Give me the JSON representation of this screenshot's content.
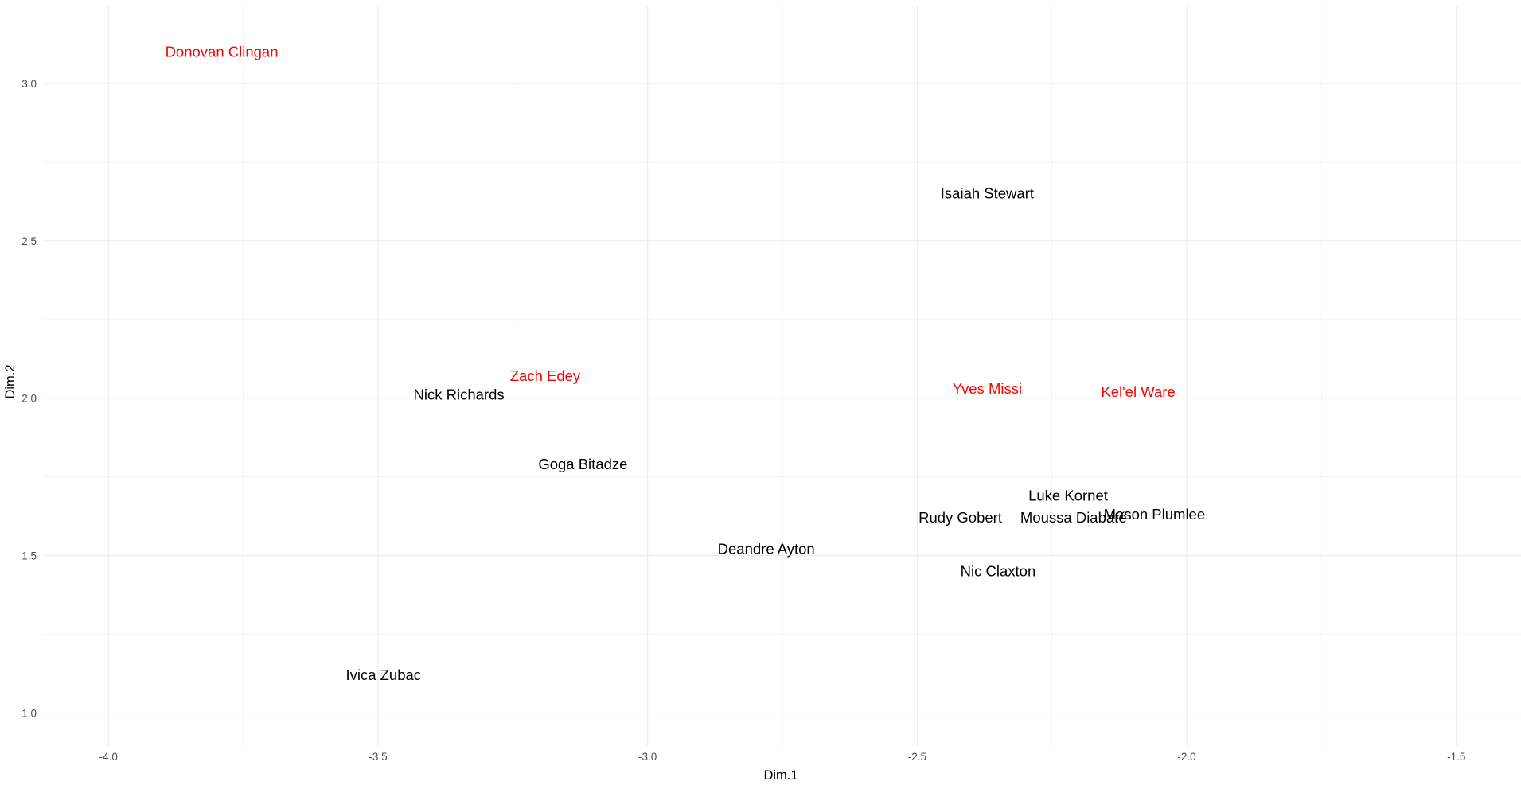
{
  "chart_data": {
    "type": "scatter",
    "title": "",
    "xlabel": "Dim.1",
    "ylabel": "Dim.2",
    "xlim": [
      -4.12,
      -1.38
    ],
    "ylim": [
      0.895,
      3.245
    ],
    "x_ticks": [
      -4.0,
      -3.5,
      -3.0,
      -2.5,
      -2.0,
      -1.5
    ],
    "x_tick_labels": [
      "-4.0",
      "-3.5",
      "-3.0",
      "-2.5",
      "-2.0",
      "-1.5"
    ],
    "y_ticks": [
      1.0,
      1.5,
      2.0,
      2.5,
      3.0
    ],
    "y_tick_labels": [
      "1.0",
      "1.5",
      "2.0",
      "2.5",
      "3.0"
    ],
    "grid": true,
    "legend": "none",
    "colors": {
      "highlight": "#ff0000",
      "default": "#000000"
    },
    "points": [
      {
        "label": "Donovan Clingan",
        "x": -3.79,
        "y": 3.1,
        "group": "highlight"
      },
      {
        "label": "Isaiah Stewart",
        "x": -2.37,
        "y": 2.65,
        "group": "default"
      },
      {
        "label": "Zach Edey",
        "x": -3.19,
        "y": 2.07,
        "group": "highlight"
      },
      {
        "label": "Nick Richards",
        "x": -3.35,
        "y": 2.01,
        "group": "default"
      },
      {
        "label": "Yves Missi",
        "x": -2.37,
        "y": 2.03,
        "group": "highlight"
      },
      {
        "label": "Kel'el Ware",
        "x": -2.09,
        "y": 2.02,
        "group": "highlight"
      },
      {
        "label": "Goga Bitadze",
        "x": -3.12,
        "y": 1.79,
        "group": "default"
      },
      {
        "label": "Luke Kornet",
        "x": -2.22,
        "y": 1.69,
        "group": "default"
      },
      {
        "label": "Rudy Gobert",
        "x": -2.42,
        "y": 1.62,
        "group": "default"
      },
      {
        "label": "Moussa Diabaté",
        "x": -2.21,
        "y": 1.62,
        "group": "default"
      },
      {
        "label": "Mason Plumlee",
        "x": -2.06,
        "y": 1.63,
        "group": "default"
      },
      {
        "label": "Deandre Ayton",
        "x": -2.78,
        "y": 1.52,
        "group": "default"
      },
      {
        "label": "Nic Claxton",
        "x": -2.35,
        "y": 1.45,
        "group": "default"
      },
      {
        "label": "Ivica Zubac",
        "x": -3.49,
        "y": 1.12,
        "group": "default"
      }
    ]
  }
}
